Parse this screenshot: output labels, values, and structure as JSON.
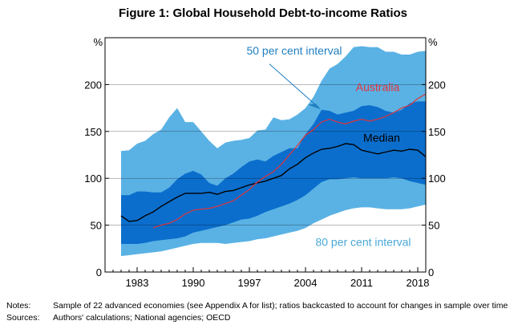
{
  "figure": {
    "title": "Figure 1: Global Household Debt-to-income Ratios",
    "notes_label": "Notes:",
    "notes_text": "Sample of 22 advanced economies (see Appendix A for list); ratios backcasted to account for changes in sample over time",
    "sources_label": "Sources:",
    "sources_text": "Authors' calculations; National agencies; OECD"
  },
  "chart_data": {
    "type": "area",
    "title": "Figure 1: Global Household Debt-to-income Ratios",
    "y_unit_left": "%",
    "y_unit_right": "%",
    "ylim": [
      0,
      250
    ],
    "xlim": [
      1979,
      2019
    ],
    "yticks": [
      0,
      50,
      100,
      150,
      200
    ],
    "xticks": [
      1983,
      1990,
      1997,
      2004,
      2011,
      2018
    ],
    "years": [
      1981,
      1982,
      1983,
      1984,
      1985,
      1986,
      1987,
      1988,
      1989,
      1990,
      1991,
      1992,
      1993,
      1994,
      1995,
      1996,
      1997,
      1998,
      1999,
      2000,
      2001,
      2002,
      2003,
      2004,
      2005,
      2006,
      2007,
      2008,
      2009,
      2010,
      2011,
      2012,
      2013,
      2014,
      2015,
      2016,
      2017,
      2018,
      2019
    ],
    "series": [
      {
        "name": "80 per cent interval",
        "lower": [
          17,
          18,
          19,
          20,
          21,
          22,
          24,
          26,
          28,
          30,
          31,
          31,
          31,
          30,
          31,
          32,
          33,
          35,
          36,
          38,
          40,
          42,
          44,
          47,
          52,
          56,
          60,
          63,
          66,
          68,
          69,
          69,
          68,
          67,
          67,
          67,
          68,
          70,
          72
        ],
        "upper": [
          129,
          130,
          137,
          140,
          147,
          152,
          165,
          175,
          160,
          160,
          150,
          140,
          132,
          138,
          140,
          141,
          143,
          151,
          152,
          165,
          162,
          163,
          168,
          175,
          187,
          204,
          217,
          222,
          230,
          240,
          241,
          240,
          240,
          235,
          235,
          232,
          232,
          235,
          236
        ]
      },
      {
        "name": "50 per cent interval",
        "lower": [
          30,
          30,
          30,
          31,
          33,
          34,
          35,
          36,
          38,
          42,
          44,
          46,
          48,
          50,
          53,
          56,
          57,
          60,
          64,
          67,
          70,
          73,
          77,
          82,
          89,
          96,
          99,
          99,
          100,
          101,
          100,
          100,
          100,
          100,
          101,
          100,
          97,
          95,
          93
        ],
        "upper": [
          82,
          82,
          86,
          86,
          85,
          85,
          90,
          99,
          105,
          108,
          104,
          95,
          92,
          100,
          105,
          112,
          118,
          120,
          118,
          124,
          128,
          132,
          132,
          147,
          158,
          173,
          172,
          168,
          170,
          172,
          177,
          178,
          176,
          172,
          170,
          173,
          180,
          182,
          182
        ]
      },
      {
        "name": "Median",
        "values": [
          60,
          54,
          55,
          60,
          64,
          70,
          75,
          80,
          84,
          84,
          84,
          85,
          83,
          86,
          87,
          90,
          93,
          95,
          97,
          100,
          103,
          110,
          115,
          122,
          127,
          131,
          132,
          134,
          137,
          136,
          130,
          128,
          126,
          128,
          130,
          129,
          131,
          130,
          123
        ]
      },
      {
        "name": "Australia",
        "start": 1985,
        "values": [
          47,
          50,
          52,
          56,
          62,
          66,
          67,
          68,
          70,
          73,
          76,
          82,
          88,
          96,
          102,
          107,
          115,
          125,
          135,
          146,
          152,
          160,
          163,
          160,
          158,
          161,
          163,
          161,
          163,
          166,
          170,
          175,
          178,
          185,
          190
        ]
      }
    ],
    "annotations": [
      {
        "text": "50 per cent interval",
        "color": "#1f7fc0"
      },
      {
        "text": "Australia",
        "color": "#e2333b"
      },
      {
        "text": "Median",
        "color": "#000000"
      },
      {
        "text": "80 per cent interval",
        "color": "#4aa8d8"
      }
    ],
    "colors": {
      "band80": "#5ab2e4",
      "band50": "#0b6ecc",
      "median": "#000000",
      "australia": "#e2333b",
      "label50": "#1f7fc0",
      "label80": "#5ab2e4",
      "plot_background": "#ffffff"
    },
    "grid": true,
    "legend": "none"
  }
}
